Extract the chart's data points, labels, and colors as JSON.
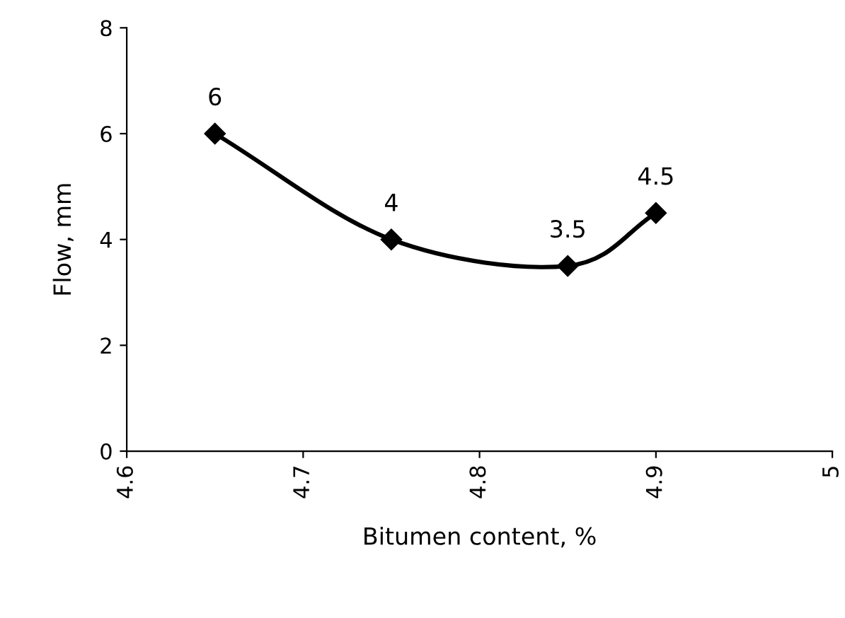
{
  "chart_data": {
    "type": "line",
    "xlabel": "Bitumen content, %",
    "ylabel": "Flow, mm",
    "x": [
      4.65,
      4.75,
      4.85,
      4.9
    ],
    "series": [
      {
        "color": "#000000",
        "values": [
          6,
          4,
          3.5,
          4.5
        ]
      }
    ],
    "xlim": [
      4.6,
      5
    ],
    "xticks": [
      4.6,
      4.7,
      4.8,
      4.9,
      5
    ],
    "ylim": [
      0,
      8
    ],
    "yticks": [
      0,
      2,
      4,
      6,
      8
    ],
    "marker": "diamond",
    "line_style": "solid",
    "data_labels": true,
    "grid": false,
    "legend": false
  }
}
